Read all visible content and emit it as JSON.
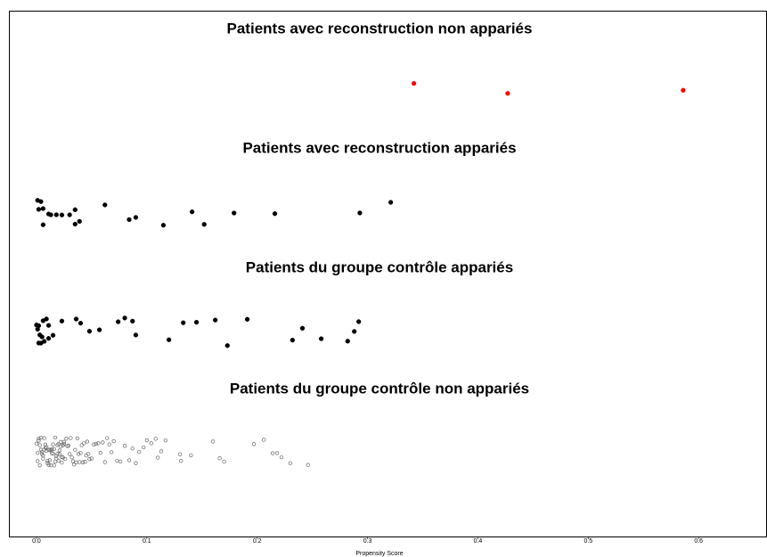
{
  "chart_data": {
    "type": "scatter",
    "xlabel": "Propensity Score",
    "xlim": [
      -0.025,
      0.662
    ],
    "xticks": [
      {
        "value": 0,
        "label": "0.0"
      },
      {
        "value": 0.1,
        "label": "0.1"
      },
      {
        "value": 0.2,
        "label": "0.2"
      },
      {
        "value": 0.3,
        "label": "0.3"
      },
      {
        "value": 0.4,
        "label": "0.4"
      },
      {
        "value": 0.5,
        "label": "0.5"
      },
      {
        "value": 0.6,
        "label": "0.6"
      }
    ],
    "series": [
      {
        "name": "Patients avec reconstruction non appariés",
        "color": "#ff0000",
        "marker": "filled",
        "values": [
          0.342,
          0.427,
          0.586
        ]
      },
      {
        "name": "Patients avec reconstruction appariés",
        "color": "#000000",
        "marker": "filled",
        "values": [
          0.001,
          0.004,
          0.002,
          0.006,
          0.006,
          0.011,
          0.013,
          0.018,
          0.023,
          0.03,
          0.035,
          0.035,
          0.039,
          0.062,
          0.084,
          0.09,
          0.115,
          0.141,
          0.152,
          0.179,
          0.216,
          0.293,
          0.321
        ]
      },
      {
        "name": "Patients du groupe contrôle appariés",
        "color": "#000000",
        "marker": "filled",
        "values": [
          0.0,
          0.001,
          0.002,
          0.002,
          0.003,
          0.004,
          0.005,
          0.006,
          0.007,
          0.009,
          0.011,
          0.011,
          0.015,
          0.023,
          0.036,
          0.04,
          0.048,
          0.057,
          0.074,
          0.08,
          0.087,
          0.09,
          0.12,
          0.133,
          0.145,
          0.162,
          0.173,
          0.191,
          0.232,
          0.241,
          0.258,
          0.282,
          0.288,
          0.292
        ]
      },
      {
        "name": "Patients du groupe contrôle non appariés",
        "color": "#666666",
        "marker": "open",
        "values": [
          0.0,
          0.001,
          0.001,
          0.002,
          0.002,
          0.003,
          0.003,
          0.004,
          0.004,
          0.005,
          0.005,
          0.006,
          0.006,
          0.007,
          0.007,
          0.008,
          0.008,
          0.009,
          0.009,
          0.01,
          0.01,
          0.011,
          0.011,
          0.012,
          0.012,
          0.013,
          0.013,
          0.014,
          0.014,
          0.015,
          0.015,
          0.016,
          0.016,
          0.017,
          0.017,
          0.018,
          0.018,
          0.019,
          0.019,
          0.02,
          0.02,
          0.021,
          0.021,
          0.022,
          0.022,
          0.023,
          0.023,
          0.024,
          0.024,
          0.025,
          0.025,
          0.026,
          0.027,
          0.028,
          0.029,
          0.03,
          0.031,
          0.032,
          0.033,
          0.034,
          0.035,
          0.036,
          0.037,
          0.038,
          0.039,
          0.04,
          0.041,
          0.042,
          0.043,
          0.044,
          0.045,
          0.046,
          0.047,
          0.048,
          0.05,
          0.052,
          0.054,
          0.056,
          0.058,
          0.06,
          0.062,
          0.064,
          0.066,
          0.068,
          0.07,
          0.073,
          0.076,
          0.08,
          0.084,
          0.087,
          0.09,
          0.093,
          0.097,
          0.1,
          0.104,
          0.108,
          0.11,
          0.113,
          0.117,
          0.13,
          0.131,
          0.14,
          0.16,
          0.166,
          0.17,
          0.197,
          0.206,
          0.214,
          0.218,
          0.222,
          0.23,
          0.246
        ]
      }
    ]
  }
}
